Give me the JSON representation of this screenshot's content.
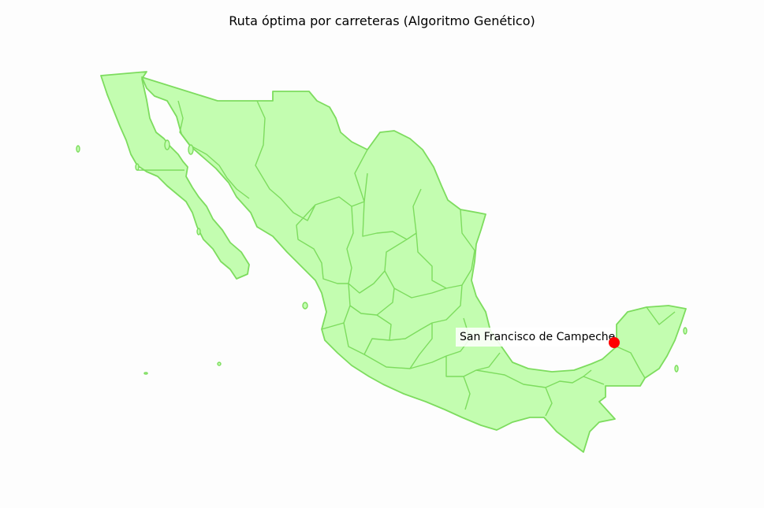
{
  "title": "Ruta óptima por carreteras (Algoritmo Genético)",
  "map": {
    "region": "Mexico",
    "fill_color": "#c3fdb0",
    "border_color": "#7ddc5e",
    "marker_color": "#ff0000"
  },
  "route": {
    "cities": [
      {
        "name": "San Francisco de Campeche"
      }
    ]
  }
}
